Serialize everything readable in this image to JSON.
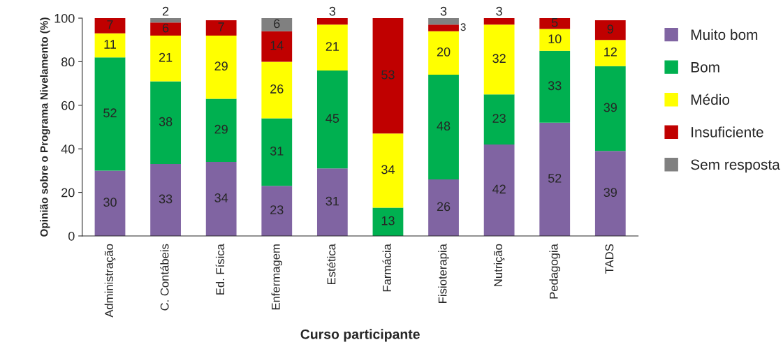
{
  "chart_data": {
    "type": "bar",
    "stacked": true,
    "xlabel": "Curso participante",
    "ylabel": "Opinião sobre o Programa Nivelamento (%)",
    "categories": [
      "Administração",
      "C. Contábeis",
      "Ed. Física",
      "Enfermagem",
      "Estética",
      "Farmácia",
      "Fisioterapia",
      "Nutrição",
      "Pedagogia",
      "TADS"
    ],
    "series": [
      {
        "name": "Muito bom",
        "color": "#8064a2",
        "values": [
          30,
          33,
          34,
          23,
          31,
          null,
          26,
          42,
          52,
          39
        ]
      },
      {
        "name": "Bom",
        "color": "#00b050",
        "values": [
          52,
          38,
          29,
          31,
          45,
          13,
          48,
          23,
          33,
          39
        ]
      },
      {
        "name": "Médio",
        "color": "#ffff00",
        "values": [
          11,
          21,
          29,
          26,
          21,
          34,
          20,
          32,
          10,
          12
        ]
      },
      {
        "name": "Insuficiente",
        "color": "#c00000",
        "values": [
          7,
          6,
          7,
          14,
          3,
          53,
          3,
          3,
          5,
          9
        ]
      },
      {
        "name": "Sem resposta",
        "color": "#808080",
        "values": [
          null,
          2,
          null,
          6,
          null,
          null,
          3,
          null,
          null,
          null
        ]
      }
    ],
    "ylim": [
      0,
      100
    ],
    "yticks": [
      0,
      20,
      40,
      60,
      80,
      100
    ],
    "data_labels": true,
    "legend": "right",
    "grid": false
  }
}
